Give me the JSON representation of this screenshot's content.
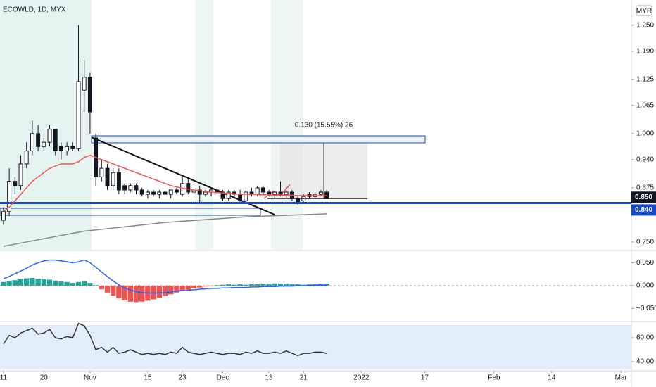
{
  "header": {
    "symbol": "ECOWLD, 1D, MYX",
    "currency": "MYR"
  },
  "chart_data": [
    {
      "type": "candlestick",
      "xlim": [
        -0.6,
        108.8
      ],
      "ylim": [
        0.732,
        1.308
      ],
      "yticks": [
        {
          "value": 1.25,
          "label": "1.250"
        },
        {
          "value": 1.19,
          "label": "1.190"
        },
        {
          "value": 1.125,
          "label": "1.125"
        },
        {
          "value": 1.065,
          "label": "1.065"
        },
        {
          "value": 1,
          "label": "1.000"
        },
        {
          "value": 0.94,
          "label": "0.940"
        },
        {
          "value": 0.875,
          "label": "0.875"
        },
        {
          "value": 0.75,
          "label": "0.750"
        }
      ],
      "open": [
        0.8,
        0.82,
        0.89,
        0.88,
        0.93,
        0.96,
        1.0,
        0.97,
        0.98,
        1.01,
        0.97,
        0.96,
        0.97,
        0.965,
        1.1,
        1.13,
        0.99,
        0.9,
        0.92,
        0.88,
        0.91,
        0.88,
        0.87,
        0.88,
        0.87,
        0.86,
        0.865,
        0.86,
        0.865,
        0.86,
        0.87,
        0.86,
        0.885,
        0.865,
        0.87,
        0.86,
        0.865,
        0.87,
        0.865,
        0.85,
        0.865,
        0.86,
        0.845,
        0.865,
        0.86,
        0.875,
        0.865,
        0.86,
        0.865,
        0.86,
        0.865,
        0.85,
        0.845,
        0.86,
        0.855,
        0.86,
        0.865
      ],
      "high": [
        0.83,
        0.92,
        0.9,
        0.95,
        0.98,
        1.03,
        1.02,
        0.99,
        1.02,
        1.01,
        0.98,
        0.98,
        0.98,
        1.25,
        1.17,
        1.14,
        1.0,
        0.94,
        0.93,
        0.92,
        0.92,
        0.885,
        0.885,
        0.885,
        0.875,
        0.87,
        0.87,
        0.87,
        0.875,
        0.87,
        0.875,
        0.9,
        0.9,
        0.875,
        0.88,
        0.87,
        0.875,
        0.875,
        0.87,
        0.87,
        0.87,
        0.87,
        0.87,
        0.875,
        0.88,
        0.88,
        0.87,
        0.865,
        0.89,
        0.87,
        0.87,
        0.855,
        0.86,
        0.865,
        0.865,
        0.87,
        0.87
      ],
      "low": [
        0.79,
        0.81,
        0.86,
        0.87,
        0.92,
        0.95,
        0.96,
        0.96,
        0.97,
        0.95,
        0.94,
        0.95,
        0.96,
        0.96,
        1.05,
        1.0,
        0.88,
        0.89,
        0.87,
        0.87,
        0.86,
        0.86,
        0.865,
        0.86,
        0.855,
        0.85,
        0.855,
        0.85,
        0.855,
        0.85,
        0.86,
        0.855,
        0.86,
        0.85,
        0.84,
        0.855,
        0.855,
        0.86,
        0.845,
        0.845,
        0.85,
        0.84,
        0.84,
        0.855,
        0.855,
        0.86,
        0.855,
        0.85,
        0.855,
        0.85,
        0.845,
        0.835,
        0.84,
        0.85,
        0.85,
        0.855,
        0.85
      ],
      "close": [
        0.82,
        0.89,
        0.88,
        0.93,
        0.96,
        1.0,
        0.97,
        0.98,
        1.01,
        0.96,
        0.96,
        0.97,
        0.965,
        1.12,
        1.13,
        1.05,
        0.9,
        0.92,
        0.88,
        0.91,
        0.87,
        0.87,
        0.88,
        0.87,
        0.86,
        0.865,
        0.86,
        0.865,
        0.86,
        0.87,
        0.865,
        0.885,
        0.865,
        0.87,
        0.86,
        0.865,
        0.87,
        0.865,
        0.85,
        0.865,
        0.86,
        0.845,
        0.865,
        0.86,
        0.875,
        0.865,
        0.86,
        0.865,
        0.86,
        0.865,
        0.85,
        0.84,
        0.855,
        0.855,
        0.86,
        0.865,
        0.85
      ],
      "series": [
        {
          "color": "#ef5350",
          "values": [
            0.82,
            0.83,
            0.845,
            0.86,
            0.875,
            0.89,
            0.9,
            0.91,
            0.92,
            0.925,
            0.93,
            0.93,
            0.93,
            0.935,
            0.945,
            0.95,
            0.945,
            0.94,
            0.935,
            0.93,
            0.925,
            0.92,
            0.915,
            0.91,
            0.905,
            0.9,
            0.895,
            0.89,
            0.885,
            0.88,
            0.877,
            0.874,
            0.872,
            0.87,
            0.868,
            0.866,
            0.865,
            0.864,
            0.863,
            0.862,
            0.861,
            0.86,
            0.86,
            0.86,
            0.859,
            0.859,
            0.859,
            0.858,
            0.858,
            0.858,
            0.858,
            0.857,
            0.857,
            0.857,
            0.857,
            0.857,
            0.857
          ]
        },
        {
          "color": "#888888",
          "x": [
            0,
            14,
            28,
            42,
            56
          ],
          "values": [
            0.74,
            0.775,
            0.795,
            0.808,
            0.815
          ]
        }
      ],
      "hline": {
        "value": 0.84,
        "label": "0.840",
        "color": "#1848cc"
      },
      "last_price": {
        "value": 0.85,
        "label": "0.850"
      },
      "annotation": "0.130 (15.55%) 26"
    },
    {
      "type": "histogram",
      "xlim": [
        -0.6,
        108.8
      ],
      "ylim": [
        -0.0754,
        0.0738
      ],
      "yticks": [
        {
          "value": 0.05,
          "label": "0.050"
        },
        {
          "value": 0,
          "label": "0.000"
        },
        {
          "value": -0.05,
          "label": "−0.050"
        }
      ],
      "colors": {
        "positive": "#26a69a",
        "negative": "#ef5350"
      },
      "values": [
        0.008,
        0.01,
        0.012,
        0.014,
        0.016,
        0.017,
        0.015,
        0.014,
        0.013,
        0.011,
        0.009,
        0.008,
        0.006,
        0.008,
        0.01,
        0.006,
        0.001,
        -0.008,
        -0.015,
        -0.022,
        -0.028,
        -0.032,
        -0.035,
        -0.036,
        -0.035,
        -0.033,
        -0.03,
        -0.027,
        -0.023,
        -0.019,
        -0.015,
        -0.012,
        -0.009,
        -0.006,
        -0.004,
        -0.002,
        -0.001,
        0.001,
        0.002,
        0.003,
        0.002,
        0.003,
        0.002,
        0.003,
        0.003,
        0.004,
        0.004,
        0.005,
        0.004,
        0.004,
        0.003,
        0.003,
        0.002,
        0.003,
        0.003,
        0.004,
        0.004
      ],
      "series": [
        {
          "color": "#2962ff",
          "values": [
            0.015,
            0.02,
            0.026,
            0.032,
            0.038,
            0.045,
            0.05,
            0.054,
            0.056,
            0.056,
            0.054,
            0.052,
            0.05,
            0.052,
            0.056,
            0.05,
            0.04,
            0.03,
            0.02,
            0.01,
            0.002,
            -0.005,
            -0.01,
            -0.013,
            -0.015,
            -0.016,
            -0.016,
            -0.016,
            -0.015,
            -0.014,
            -0.012,
            -0.011,
            -0.01,
            -0.009,
            -0.008,
            -0.007,
            -0.006,
            -0.006,
            -0.005,
            -0.005,
            -0.004,
            -0.004,
            -0.004,
            -0.003,
            -0.003,
            -0.002,
            -0.002,
            -0.002,
            -0.001,
            -0.001,
            -0.001,
            0,
            0,
            0,
            0.001,
            0.001,
            0.001
          ]
        }
      ]
    },
    {
      "type": "line",
      "xlim": [
        -0.6,
        108.8
      ],
      "ylim": [
        33.5,
        71.8
      ],
      "yticks": [
        {
          "value": 60,
          "label": "60.00"
        },
        {
          "value": 40,
          "label": "40.00"
        }
      ],
      "xticks": [
        {
          "value": 0,
          "label": "11"
        },
        {
          "value": 7,
          "label": "20"
        },
        {
          "value": 15,
          "label": "Nov"
        },
        {
          "value": 25,
          "label": "15"
        },
        {
          "value": 31,
          "label": "23"
        },
        {
          "value": 38,
          "label": "Dec"
        },
        {
          "value": 46,
          "label": "13"
        },
        {
          "value": 52,
          "label": "21"
        },
        {
          "value": 62,
          "label": "2022"
        },
        {
          "value": 73,
          "label": "17"
        },
        {
          "value": 85,
          "label": "Feb"
        },
        {
          "value": 95,
          "label": "14"
        },
        {
          "value": 107,
          "label": "Mar"
        }
      ],
      "series": [
        {
          "color": "#333333",
          "values": [
            55,
            62,
            60,
            64,
            66,
            68,
            63,
            64,
            67,
            60,
            59,
            61,
            60,
            72,
            70,
            62,
            50,
            52,
            48,
            52,
            47,
            48,
            50,
            48,
            46,
            47,
            46,
            47,
            46,
            48,
            47,
            52,
            48,
            47,
            46,
            47,
            48,
            47,
            46,
            47,
            47,
            46,
            48,
            47,
            49,
            47,
            47,
            48,
            47,
            49,
            47,
            45,
            47,
            47,
            48,
            48,
            47
          ]
        }
      ]
    }
  ]
}
